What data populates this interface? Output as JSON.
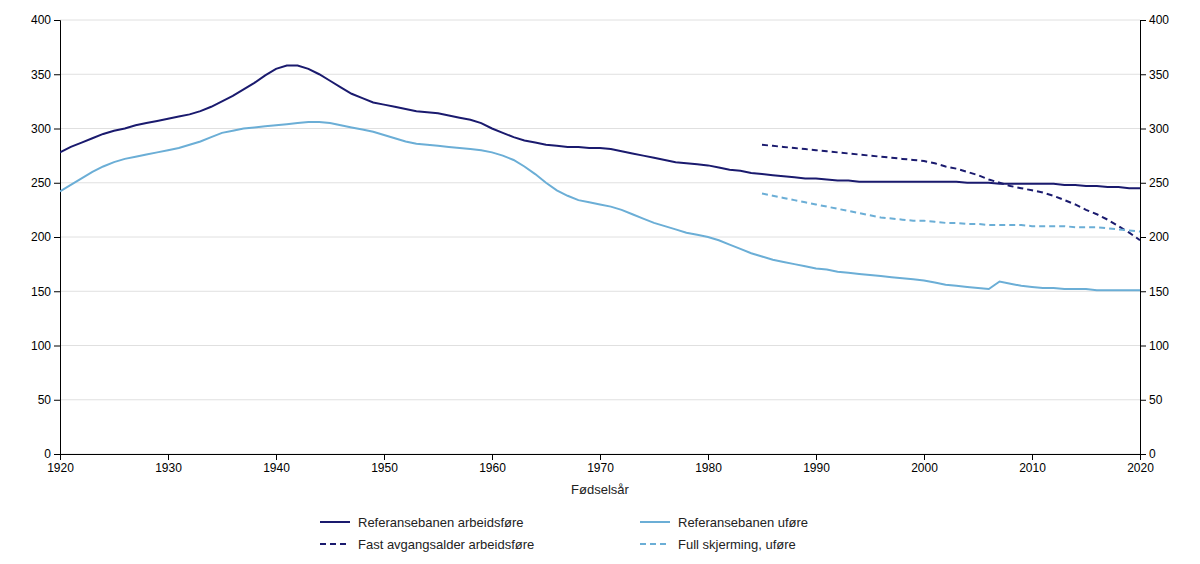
{
  "chart_data": {
    "type": "line",
    "xlabel": "Fødselsår",
    "x": [
      1920,
      1921,
      1922,
      1923,
      1924,
      1925,
      1926,
      1927,
      1928,
      1929,
      1930,
      1931,
      1932,
      1933,
      1934,
      1935,
      1936,
      1937,
      1938,
      1939,
      1940,
      1941,
      1942,
      1943,
      1944,
      1945,
      1946,
      1947,
      1948,
      1949,
      1950,
      1951,
      1952,
      1953,
      1954,
      1955,
      1956,
      1957,
      1958,
      1959,
      1960,
      1961,
      1962,
      1963,
      1964,
      1965,
      1966,
      1967,
      1968,
      1969,
      1970,
      1971,
      1972,
      1973,
      1974,
      1975,
      1976,
      1977,
      1978,
      1979,
      1980,
      1981,
      1982,
      1983,
      1984,
      1985,
      1986,
      1987,
      1988,
      1989,
      1990,
      1991,
      1992,
      1993,
      1994,
      1995,
      1996,
      1997,
      1998,
      1999,
      2000,
      2001,
      2002,
      2003,
      2004,
      2005,
      2006,
      2007,
      2008,
      2009,
      2010,
      2011,
      2012,
      2013,
      2014,
      2015,
      2016,
      2017,
      2018,
      2019,
      2020
    ],
    "series": [
      {
        "name": "Referansebanen arbeidsføre",
        "color": "#1a1a6e",
        "line_style": "solid",
        "values": [
          278,
          283,
          287,
          291,
          295,
          298,
          300,
          303,
          305,
          307,
          309,
          311,
          313,
          316,
          320,
          325,
          330,
          336,
          342,
          349,
          355,
          358,
          358,
          355,
          350,
          344,
          338,
          332,
          328,
          324,
          322,
          320,
          318,
          316,
          315,
          314,
          312,
          310,
          308,
          305,
          300,
          296,
          292,
          289,
          287,
          285,
          284,
          283,
          283,
          282,
          282,
          281,
          279,
          277,
          275,
          273,
          271,
          269,
          268,
          267,
          266,
          264,
          262,
          261,
          259,
          258,
          257,
          256,
          255,
          254,
          254,
          253,
          252,
          252,
          251,
          251,
          251,
          251,
          251,
          251,
          251,
          251,
          251,
          251,
          250,
          250,
          250,
          249,
          249,
          249,
          249,
          249,
          249,
          248,
          248,
          247,
          247,
          246,
          246,
          245,
          245
        ]
      },
      {
        "name": "Referansebanen uføre",
        "color": "#6baed6",
        "line_style": "solid",
        "values": [
          242,
          248,
          254,
          260,
          265,
          269,
          272,
          274,
          276,
          278,
          280,
          282,
          285,
          288,
          292,
          296,
          298,
          300,
          301,
          302,
          303,
          304,
          305,
          306,
          306,
          305,
          303,
          301,
          299,
          297,
          294,
          291,
          288,
          286,
          285,
          284,
          283,
          282,
          281,
          280,
          278,
          275,
          271,
          265,
          258,
          250,
          243,
          238,
          234,
          232,
          230,
          228,
          225,
          221,
          217,
          213,
          210,
          207,
          204,
          202,
          200,
          197,
          193,
          189,
          185,
          182,
          179,
          177,
          175,
          173,
          171,
          170,
          168,
          167,
          166,
          165,
          164,
          163,
          162,
          161,
          160,
          158,
          156,
          155,
          154,
          153,
          152,
          159,
          157,
          155,
          154,
          153,
          153,
          152,
          152,
          152,
          151,
          151,
          151,
          151,
          151
        ]
      },
      {
        "name": "Fast avgangsalder arbeidsføre",
        "color": "#1a1a6e",
        "line_style": "dashed",
        "values": [
          null,
          null,
          null,
          null,
          null,
          null,
          null,
          null,
          null,
          null,
          null,
          null,
          null,
          null,
          null,
          null,
          null,
          null,
          null,
          null,
          null,
          null,
          null,
          null,
          null,
          null,
          null,
          null,
          null,
          null,
          null,
          null,
          null,
          null,
          null,
          null,
          null,
          null,
          null,
          null,
          null,
          null,
          null,
          null,
          null,
          null,
          null,
          null,
          null,
          null,
          null,
          null,
          null,
          null,
          null,
          null,
          null,
          null,
          null,
          null,
          null,
          null,
          null,
          null,
          null,
          285,
          284,
          283,
          282,
          281,
          280,
          279,
          278,
          277,
          276,
          275,
          274,
          273,
          272,
          271,
          270,
          268,
          265,
          263,
          260,
          257,
          253,
          250,
          247,
          245,
          243,
          241,
          238,
          234,
          230,
          225,
          221,
          216,
          210,
          204,
          197
        ]
      },
      {
        "name": "Full skjerming, uføre",
        "color": "#6baed6",
        "line_style": "dashed",
        "values": [
          null,
          null,
          null,
          null,
          null,
          null,
          null,
          null,
          null,
          null,
          null,
          null,
          null,
          null,
          null,
          null,
          null,
          null,
          null,
          null,
          null,
          null,
          null,
          null,
          null,
          null,
          null,
          null,
          null,
          null,
          null,
          null,
          null,
          null,
          null,
          null,
          null,
          null,
          null,
          null,
          null,
          null,
          null,
          null,
          null,
          null,
          null,
          null,
          null,
          null,
          null,
          null,
          null,
          null,
          null,
          null,
          null,
          null,
          null,
          null,
          null,
          null,
          null,
          null,
          null,
          240,
          238,
          236,
          234,
          232,
          230,
          228,
          226,
          224,
          222,
          220,
          218,
          217,
          216,
          215,
          215,
          214,
          213,
          213,
          212,
          212,
          211,
          211,
          211,
          211,
          210,
          210,
          210,
          210,
          209,
          209,
          209,
          208,
          207,
          206,
          205
        ]
      }
    ],
    "xlim": [
      1920,
      2020
    ],
    "xticks": [
      1920,
      1930,
      1940,
      1950,
      1960,
      1970,
      1980,
      1990,
      2000,
      2010,
      2020
    ],
    "ylim": [
      0,
      400
    ],
    "yticks": [
      0,
      50,
      100,
      150,
      200,
      250,
      300,
      350,
      400
    ],
    "y2lim": [
      0,
      400
    ],
    "y2ticks": [
      0,
      50,
      100,
      150,
      200,
      250,
      300,
      350,
      400
    ],
    "grid": true,
    "legend": "bottom"
  }
}
